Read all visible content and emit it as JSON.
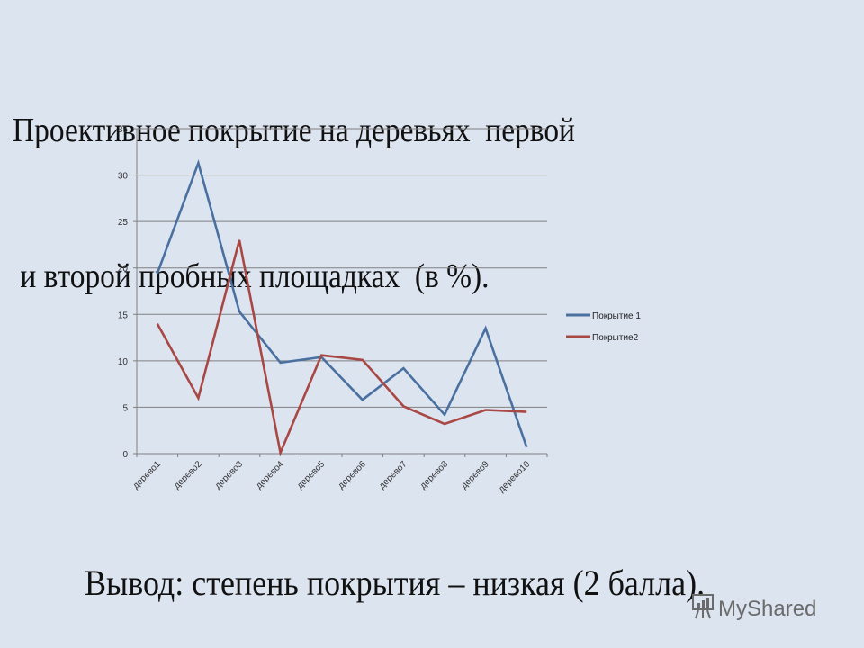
{
  "slide": {
    "title_line1": "Проективное покрытие на деревьях  первой",
    "title_line2": " и второй пробных площадках  (в %).",
    "conclusion": "Вывод: степень покрытия – низкая (2 балла).",
    "watermark": "MyShared"
  },
  "legend": {
    "items": [
      {
        "label": "Покрытие 1",
        "color": "#4a70a0"
      },
      {
        "label": "Покрытие2",
        "color": "#a94744"
      }
    ]
  },
  "chart_data": {
    "type": "line",
    "title": "Проективное покрытие на деревьях первой и второй пробных площадках (в %).",
    "xlabel": "",
    "ylabel": "",
    "categories": [
      "дерево1",
      "дерево2",
      "дерево3",
      "дерево4",
      "дерево5",
      "дерево6",
      "дерево7",
      "дерево8",
      "дерево9",
      "дерево10"
    ],
    "series": [
      {
        "name": "Покрытие 1",
        "color": "#4a70a0",
        "values": [
          19.4,
          31.3,
          15.3,
          9.8,
          10.4,
          5.8,
          9.2,
          4.2,
          13.5,
          0.7
        ]
      },
      {
        "name": "Покрытие2",
        "color": "#a94744",
        "values": [
          14.0,
          6.0,
          23.0,
          0.1,
          10.6,
          10.1,
          5.1,
          3.2,
          4.7,
          4.5
        ]
      }
    ],
    "ylim": [
      0,
      35
    ],
    "yticks": [
      0,
      5,
      10,
      15,
      20,
      25,
      30,
      35
    ],
    "grid": true,
    "legend_position": "right"
  }
}
